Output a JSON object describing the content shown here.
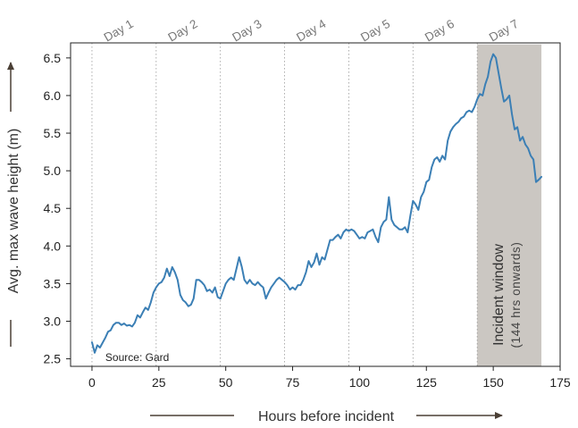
{
  "chart_data": {
    "type": "line",
    "xlabel": "Hours before incident",
    "ylabel": "Avg. max wave height (m)",
    "xlim": [
      -8,
      175
    ],
    "ylim": [
      2.4,
      6.7
    ],
    "xticks": [
      0,
      25,
      50,
      75,
      100,
      125,
      150,
      175
    ],
    "yticks": [
      2.5,
      3.0,
      3.5,
      4.0,
      4.5,
      5.0,
      5.5,
      6.0,
      6.5
    ],
    "ytick_labels": [
      "2.5",
      "3.0",
      "3.5",
      "4.0",
      "4.5",
      "5.0",
      "5.5",
      "6.0",
      "6.5"
    ],
    "grid": "vertical dotted lines at each day boundary",
    "day_markers": [
      {
        "label": "Day 1",
        "x": 0
      },
      {
        "label": "Day 2",
        "x": 24
      },
      {
        "label": "Day 3",
        "x": 48
      },
      {
        "label": "Day 4",
        "x": 72
      },
      {
        "label": "Day 5",
        "x": 96
      },
      {
        "label": "Day 6",
        "x": 120
      },
      {
        "label": "Day 7",
        "x": 144
      }
    ],
    "shaded_region": {
      "x_start": 144,
      "x_end": 168,
      "label": "Incident window",
      "sublabel": "(144 hrs onwards)",
      "color": "#cbc7c2"
    },
    "annotation": "Source: Gard",
    "series": [
      {
        "color": "#3b7fb5",
        "points": [
          [
            0,
            2.72
          ],
          [
            1,
            2.58
          ],
          [
            2,
            2.68
          ],
          [
            3,
            2.65
          ],
          [
            5,
            2.78
          ],
          [
            6,
            2.86
          ],
          [
            7,
            2.88
          ],
          [
            8,
            2.95
          ],
          [
            9,
            2.98
          ],
          [
            10,
            2.98
          ],
          [
            11,
            2.95
          ],
          [
            12,
            2.97
          ],
          [
            13,
            2.94
          ],
          [
            14,
            2.95
          ],
          [
            15,
            2.93
          ],
          [
            16,
            2.98
          ],
          [
            17,
            3.08
          ],
          [
            18,
            3.05
          ],
          [
            19,
            3.12
          ],
          [
            20,
            3.18
          ],
          [
            21,
            3.15
          ],
          [
            22,
            3.25
          ],
          [
            23,
            3.38
          ],
          [
            24,
            3.45
          ],
          [
            25,
            3.5
          ],
          [
            26,
            3.52
          ],
          [
            27,
            3.58
          ],
          [
            28,
            3.7
          ],
          [
            29,
            3.6
          ],
          [
            30,
            3.72
          ],
          [
            31,
            3.65
          ],
          [
            32,
            3.55
          ],
          [
            33,
            3.35
          ],
          [
            34,
            3.28
          ],
          [
            35,
            3.25
          ],
          [
            36,
            3.2
          ],
          [
            37,
            3.22
          ],
          [
            38,
            3.3
          ],
          [
            39,
            3.55
          ],
          [
            40,
            3.55
          ],
          [
            41,
            3.52
          ],
          [
            42,
            3.48
          ],
          [
            43,
            3.4
          ],
          [
            44,
            3.42
          ],
          [
            45,
            3.38
          ],
          [
            46,
            3.45
          ],
          [
            47,
            3.32
          ],
          [
            48,
            3.3
          ],
          [
            49,
            3.4
          ],
          [
            50,
            3.5
          ],
          [
            51,
            3.55
          ],
          [
            52,
            3.58
          ],
          [
            53,
            3.55
          ],
          [
            54,
            3.7
          ],
          [
            55,
            3.85
          ],
          [
            56,
            3.72
          ],
          [
            57,
            3.55
          ],
          [
            58,
            3.5
          ],
          [
            59,
            3.55
          ],
          [
            60,
            3.5
          ],
          [
            61,
            3.48
          ],
          [
            62,
            3.52
          ],
          [
            63,
            3.48
          ],
          [
            64,
            3.45
          ],
          [
            65,
            3.3
          ],
          [
            66,
            3.38
          ],
          [
            67,
            3.45
          ],
          [
            68,
            3.5
          ],
          [
            69,
            3.55
          ],
          [
            70,
            3.58
          ],
          [
            71,
            3.55
          ],
          [
            72,
            3.52
          ],
          [
            73,
            3.48
          ],
          [
            74,
            3.42
          ],
          [
            75,
            3.45
          ],
          [
            76,
            3.42
          ],
          [
            77,
            3.48
          ],
          [
            78,
            3.48
          ],
          [
            79,
            3.55
          ],
          [
            80,
            3.65
          ],
          [
            81,
            3.8
          ],
          [
            82,
            3.72
          ],
          [
            83,
            3.78
          ],
          [
            84,
            3.9
          ],
          [
            85,
            3.75
          ],
          [
            86,
            3.85
          ],
          [
            87,
            3.82
          ],
          [
            88,
            3.95
          ],
          [
            89,
            4.08
          ],
          [
            90,
            4.08
          ],
          [
            91,
            4.12
          ],
          [
            92,
            4.15
          ],
          [
            93,
            4.1
          ],
          [
            94,
            4.18
          ],
          [
            95,
            4.22
          ],
          [
            96,
            4.2
          ],
          [
            97,
            4.22
          ],
          [
            98,
            4.2
          ],
          [
            99,
            4.15
          ],
          [
            100,
            4.1
          ],
          [
            101,
            4.12
          ],
          [
            102,
            4.1
          ],
          [
            103,
            4.18
          ],
          [
            104,
            4.2
          ],
          [
            105,
            4.22
          ],
          [
            106,
            4.12
          ],
          [
            107,
            4.05
          ],
          [
            108,
            4.25
          ],
          [
            109,
            4.32
          ],
          [
            110,
            4.35
          ],
          [
            111,
            4.65
          ],
          [
            112,
            4.35
          ],
          [
            113,
            4.28
          ],
          [
            114,
            4.25
          ],
          [
            115,
            4.22
          ],
          [
            116,
            4.22
          ],
          [
            117,
            4.25
          ],
          [
            118,
            4.18
          ],
          [
            119,
            4.4
          ],
          [
            120,
            4.6
          ],
          [
            121,
            4.55
          ],
          [
            122,
            4.48
          ],
          [
            123,
            4.65
          ],
          [
            124,
            4.72
          ],
          [
            125,
            4.85
          ],
          [
            126,
            4.88
          ],
          [
            127,
            5.05
          ],
          [
            128,
            5.15
          ],
          [
            129,
            5.18
          ],
          [
            130,
            5.12
          ],
          [
            131,
            5.2
          ],
          [
            132,
            5.15
          ],
          [
            133,
            5.4
          ],
          [
            134,
            5.52
          ],
          [
            135,
            5.58
          ],
          [
            136,
            5.62
          ],
          [
            137,
            5.65
          ],
          [
            138,
            5.7
          ],
          [
            139,
            5.72
          ],
          [
            140,
            5.78
          ],
          [
            141,
            5.8
          ],
          [
            142,
            5.78
          ],
          [
            143,
            5.85
          ],
          [
            144,
            5.95
          ],
          [
            145,
            6.02
          ],
          [
            146,
            6.0
          ],
          [
            147,
            6.15
          ],
          [
            148,
            6.25
          ],
          [
            149,
            6.45
          ],
          [
            150,
            6.55
          ],
          [
            151,
            6.5
          ],
          [
            152,
            6.3
          ],
          [
            153,
            6.1
          ],
          [
            154,
            5.92
          ],
          [
            155,
            5.95
          ],
          [
            156,
            6.0
          ],
          [
            157,
            5.75
          ],
          [
            158,
            5.55
          ],
          [
            159,
            5.58
          ],
          [
            160,
            5.4
          ],
          [
            161,
            5.45
          ],
          [
            162,
            5.35
          ],
          [
            163,
            5.3
          ],
          [
            164,
            5.2
          ],
          [
            165,
            5.15
          ],
          [
            166,
            4.85
          ],
          [
            167,
            4.88
          ],
          [
            168,
            4.92
          ]
        ]
      }
    ]
  }
}
